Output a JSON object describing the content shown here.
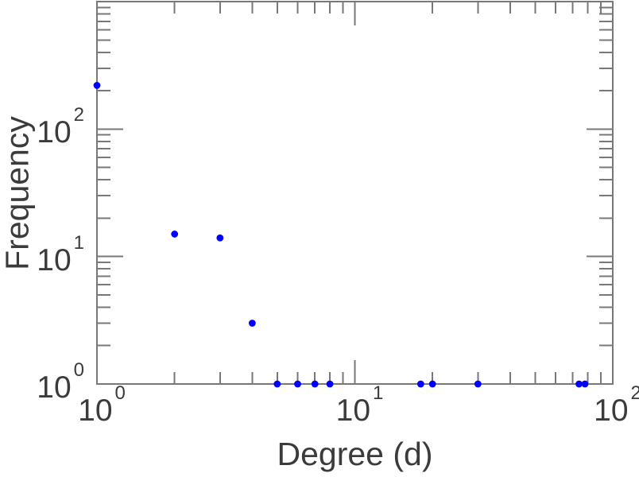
{
  "chart_data": {
    "type": "scatter",
    "title": "",
    "xlabel": "Degree (d)",
    "ylabel": "Frequency",
    "x_scale": "log",
    "y_scale": "log",
    "xlim": [
      1,
      100
    ],
    "ylim": [
      1,
      1000
    ],
    "grid": false,
    "legend": null,
    "tick_base": "10",
    "x_labeled_tick_exponents": [
      0,
      1,
      2
    ],
    "y_labeled_tick_exponents": [
      0,
      1,
      2
    ],
    "points": [
      {
        "x": 1,
        "y": 220
      },
      {
        "x": 2,
        "y": 15
      },
      {
        "x": 3,
        "y": 14
      },
      {
        "x": 4,
        "y": 3
      },
      {
        "x": 5,
        "y": 1
      },
      {
        "x": 6,
        "y": 1
      },
      {
        "x": 7,
        "y": 1
      },
      {
        "x": 8,
        "y": 1
      },
      {
        "x": 18,
        "y": 1
      },
      {
        "x": 20,
        "y": 1
      },
      {
        "x": 30,
        "y": 1
      },
      {
        "x": 74,
        "y": 1
      },
      {
        "x": 78,
        "y": 1
      }
    ],
    "marker": {
      "shape": "circle",
      "color": "#0000ff",
      "radius_px": 4.4
    },
    "colors": {
      "axis": "#787878",
      "text": "#3b3b3b",
      "background": "#ffffff"
    }
  }
}
